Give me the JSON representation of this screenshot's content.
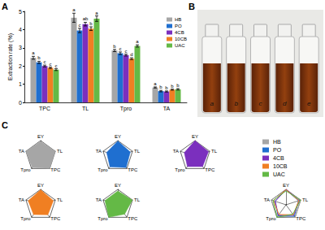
{
  "chart_data": [
    {
      "type": "bar",
      "title": "A",
      "ylabel": "Extraction rate (%)",
      "categories": [
        "TPC",
        "TL",
        "Tpro",
        "TA"
      ],
      "ylim": [
        0,
        5
      ],
      "yticks": [
        0,
        1,
        2,
        3,
        4,
        5
      ],
      "grid": false,
      "legend": "upper right",
      "series": [
        {
          "name": "HB",
          "color": "#a6a6a6",
          "values": [
            2.45,
            4.65,
            2.85,
            0.82
          ],
          "errors": [
            0.08,
            0.25,
            0.06,
            0.03
          ],
          "letters": [
            "a",
            "a",
            "b",
            "a"
          ]
        },
        {
          "name": "PO",
          "color": "#1f6fd0",
          "values": [
            2.2,
            3.95,
            2.7,
            0.62
          ],
          "errors": [
            0.06,
            0.12,
            0.07,
            0.04
          ],
          "letters": [
            "b",
            "c",
            "c",
            "b"
          ]
        },
        {
          "name": "4CB",
          "color": "#7b2fbe",
          "values": [
            2.0,
            4.3,
            2.6,
            0.6
          ],
          "errors": [
            0.05,
            0.1,
            0.05,
            0.03
          ],
          "letters": [
            "c",
            "ab",
            "c",
            "b"
          ]
        },
        {
          "name": "10CB",
          "color": "#f07f22",
          "values": [
            1.9,
            4.05,
            2.4,
            0.7
          ],
          "errors": [
            0.04,
            0.1,
            0.05,
            0.03
          ],
          "letters": [
            "c",
            "b",
            "d",
            "b"
          ]
        },
        {
          "name": "UAC",
          "color": "#64b946",
          "values": [
            1.8,
            4.6,
            3.1,
            0.72
          ],
          "errors": [
            0.05,
            0.15,
            0.06,
            0.04
          ],
          "letters": [
            "c",
            "a",
            "a",
            "b"
          ]
        }
      ]
    },
    {
      "type": "image",
      "title": "B",
      "labels": [
        "a",
        "b",
        "c",
        "d",
        "e"
      ]
    },
    {
      "type": "radar",
      "title": "C",
      "indicators": [
        "EY",
        "TL",
        "TPC",
        "Tpro",
        "TA"
      ],
      "ylim": [
        0,
        1
      ],
      "legend": "right",
      "series": [
        {
          "name": "HB",
          "color": "#a6a6a6",
          "values": [
            0.95,
            1.0,
            1.0,
            0.92,
            1.0
          ]
        },
        {
          "name": "PO",
          "color": "#1f6fd0",
          "values": [
            0.97,
            0.85,
            0.92,
            0.87,
            0.76
          ]
        },
        {
          "name": "4CB",
          "color": "#7b2fbe",
          "values": [
            1.0,
            0.92,
            0.84,
            0.84,
            0.73
          ]
        },
        {
          "name": "10CB",
          "color": "#f07f22",
          "values": [
            0.98,
            0.87,
            0.8,
            0.78,
            0.85
          ]
        },
        {
          "name": "UAC",
          "color": "#64b946",
          "values": [
            0.9,
            0.99,
            0.75,
            1.0,
            0.88
          ]
        }
      ]
    }
  ]
}
